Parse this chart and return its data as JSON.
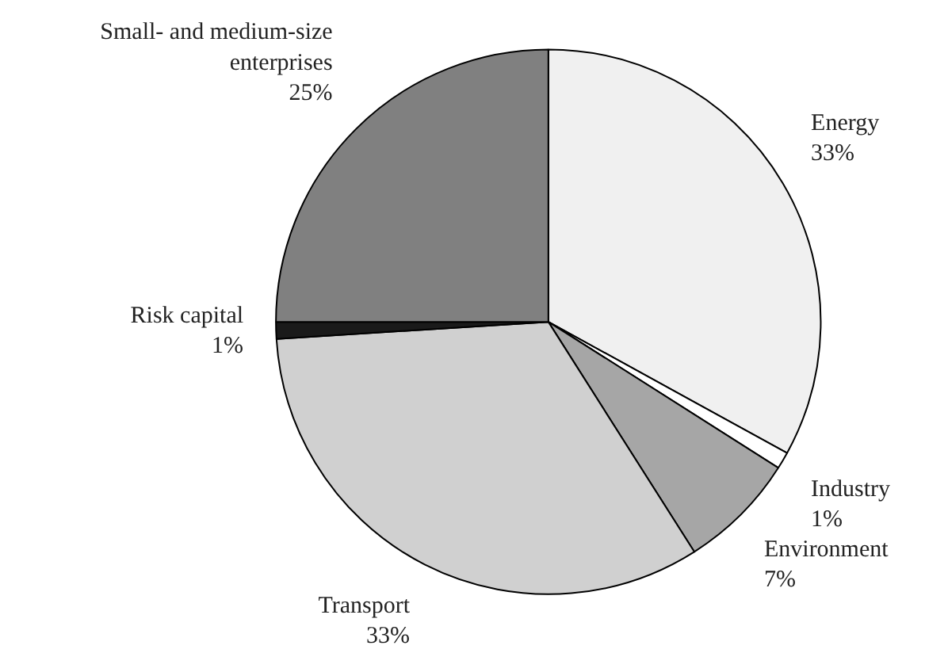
{
  "chart_data": {
    "type": "pie",
    "categories": [
      "Energy",
      "Industry",
      "Environment",
      "Transport",
      "Risk capital",
      "Small- and medium-size enterprises"
    ],
    "values": [
      33,
      1,
      7,
      33,
      1,
      25
    ],
    "value_labels": [
      "33%",
      "1%",
      "7%",
      "33%",
      "1%",
      "25%"
    ],
    "colors": [
      "#f0f0f0",
      "#ffffff",
      "#a6a6a6",
      "#d0d0d0",
      "#1a1a1a",
      "#808080"
    ]
  }
}
